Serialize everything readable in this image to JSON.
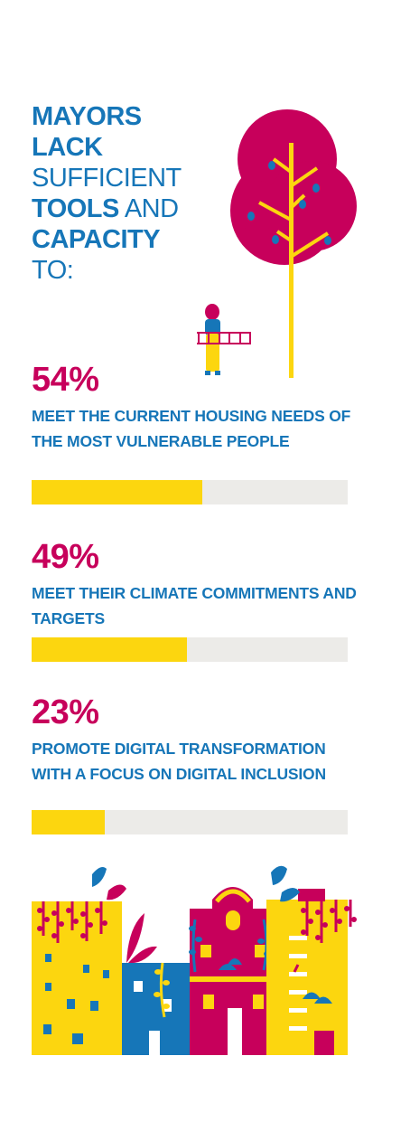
{
  "headline": {
    "line1": "MAYORS",
    "line2": "LACK",
    "line3": "SUFFICIENT",
    "line4_bold": "TOOLS",
    "line4_light": " AND",
    "line5": "CAPACITY",
    "line6": "TO:"
  },
  "stats": [
    {
      "percent": "54%",
      "value": 0.54,
      "text": "MEET THE CURRENT HOUSING NEEDS OF THE MOST VULNERABLE PEOPLE"
    },
    {
      "percent": "49%",
      "value": 0.49,
      "text": "MEET THEIR CLIMATE COMMITMENTS AND TARGETS"
    },
    {
      "percent": "23%",
      "value": 0.23,
      "text": "PROMOTE DIGITAL TRANSFORMATION WITH A FOCUS ON DIGITAL INCLUSION"
    }
  ],
  "colors": {
    "blue": "#1676b8",
    "magenta": "#c7005b",
    "yellow": "#fcd60f",
    "track": "#ecebe8"
  },
  "illustrations": [
    "tree-illustration",
    "person-with-ladder-illustration",
    "city-buildings-illustration"
  ]
}
